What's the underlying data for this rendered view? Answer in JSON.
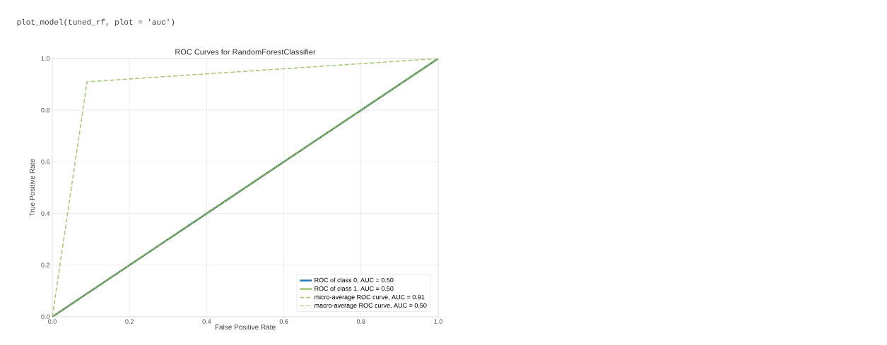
{
  "chart_data": {
    "type": "line",
    "title": "ROC Curves for RandomForestClassifier",
    "xlabel": "False Positive Rate",
    "ylabel": "True Positive Rate",
    "annotations": [
      "plot_model(tuned_rf, plot = 'auc')"
    ],
    "xlim": [
      0,
      1
    ],
    "ylim": [
      0,
      1
    ],
    "xticks": [
      {
        "value": 0,
        "label": "0.0"
      },
      0.2,
      0.4,
      0.6,
      0.8,
      {
        "value": 1,
        "label": "1.0"
      }
    ],
    "yticks": [
      {
        "value": 0,
        "label": "0.0"
      },
      0.2,
      0.4,
      0.6,
      0.8,
      {
        "value": 1,
        "label": "1.0"
      }
    ],
    "grid": true,
    "legend": "bottom right",
    "series": [
      {
        "name": "ROC of class 0, AUC = 0.50",
        "color": "#2a7ab0",
        "line_style": "solid",
        "x": [
          0,
          1
        ],
        "values": [
          0,
          1
        ]
      },
      {
        "name": "ROC of class 1, AUC = 0.50",
        "color": "#8fbc5a",
        "line_style": "solid",
        "x": [
          0,
          1
        ],
        "values": [
          0,
          1
        ]
      },
      {
        "name": "micro-average ROC curve, AUC = 0.91",
        "color": "#a6cc7a",
        "line_style": "dashed",
        "x": [
          0,
          0.09,
          1
        ],
        "values": [
          0,
          0.91,
          1
        ]
      },
      {
        "name": "macro-average ROC curve, AUC = 0.50",
        "color": "#a6cc7a",
        "line_style": "dashed",
        "x": [
          0,
          1
        ],
        "values": [
          0,
          1
        ]
      },
      {
        "color": "#2d3b2d",
        "line_style": "dotted",
        "x": [
          0,
          1
        ],
        "values": [
          0,
          1
        ]
      }
    ]
  }
}
